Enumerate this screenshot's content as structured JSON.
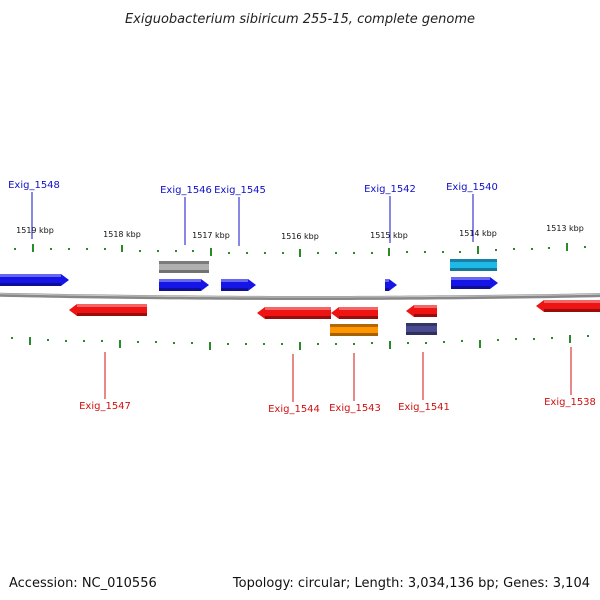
{
  "title": "Exiguobacterium sibiricum 255-15, complete genome",
  "footer": {
    "accession": "Accession: NC_010556",
    "summary": "Topology: circular; Length: 3,034,136 bp; Genes: 3,104"
  },
  "colors": {
    "forward_label": "#1010c8",
    "reverse_label": "#d01010",
    "backbone": "#888888",
    "tick": "#2a8a2a",
    "blue": "#1515e8",
    "red": "#ee1414",
    "gray": "#b0b0b0",
    "cyan": "#1fb8e8",
    "orange": "#ff9500",
    "navy": "#4a4a90"
  },
  "scale": {
    "tick_labels": [
      "1519 kbp",
      "1518 kbp",
      "1517 kbp",
      "1516 kbp",
      "1515 kbp",
      "1514 kbp",
      "1513 kbp"
    ]
  },
  "genes": [
    {
      "label": "Exig_1548",
      "strand": "forward",
      "color": "blue"
    },
    {
      "label": "Exig_1546",
      "strand": "forward",
      "color": "blue"
    },
    {
      "label": "Exig_1545",
      "strand": "forward",
      "color": "blue"
    },
    {
      "label": "Exig_1542",
      "strand": "forward",
      "color": "blue"
    },
    {
      "label": "Exig_1540",
      "strand": "forward",
      "color": "blue"
    },
    {
      "label": "Exig_1547",
      "strand": "reverse",
      "color": "red"
    },
    {
      "label": "Exig_1544",
      "strand": "reverse",
      "color": "red"
    },
    {
      "label": "Exig_1543",
      "strand": "reverse",
      "color": "red"
    },
    {
      "label": "Exig_1541",
      "strand": "reverse",
      "color": "red"
    },
    {
      "label": "Exig_1538",
      "strand": "reverse",
      "color": "red"
    }
  ],
  "features": [
    {
      "name": "forward-feature-gray",
      "color": "gray"
    },
    {
      "name": "forward-feature-cyan",
      "color": "cyan"
    },
    {
      "name": "reverse-feature-orange",
      "color": "orange"
    },
    {
      "name": "reverse-feature-navy",
      "color": "navy"
    }
  ]
}
